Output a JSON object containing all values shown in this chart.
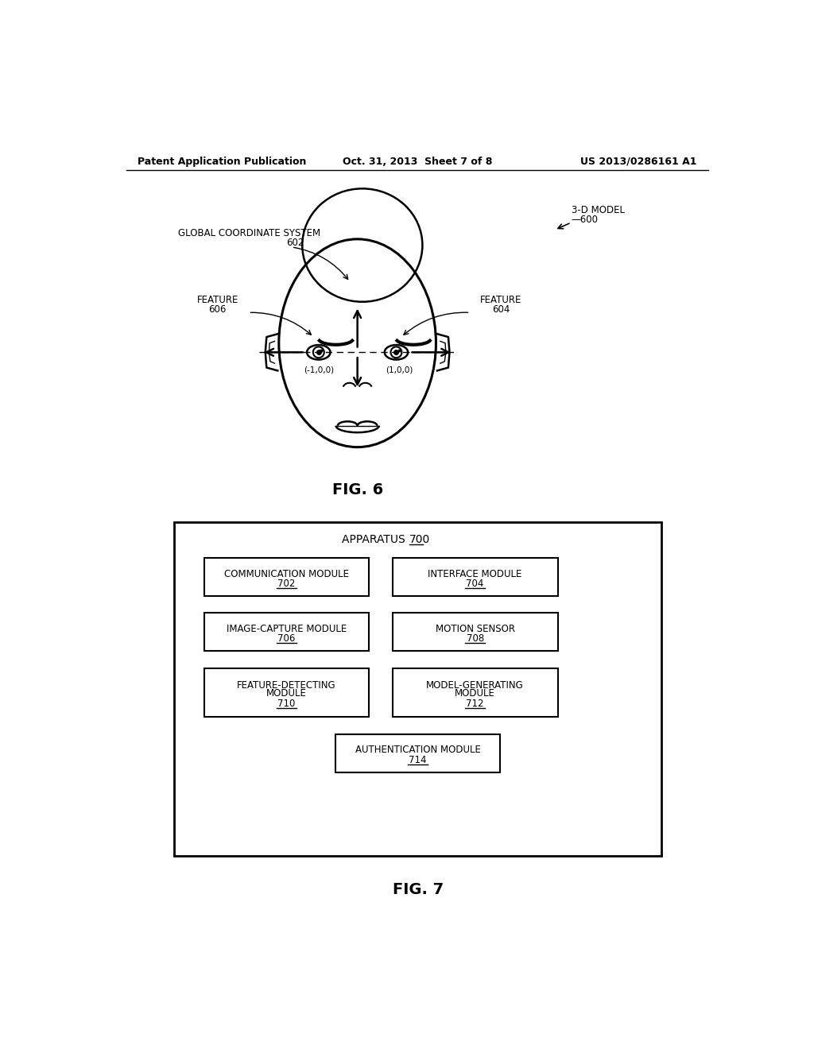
{
  "bg_color": "#ffffff",
  "header_left": "Patent Application Publication",
  "header_center": "Oct. 31, 2013  Sheet 7 of 8",
  "header_right": "US 2013/0286161 A1",
  "fig6_label": "FIG. 6",
  "fig7_label": "FIG. 7",
  "label_3d_model": "3-D MODEL",
  "label_600": "600",
  "label_global": "GLOBAL COORDINATE SYSTEM",
  "label_602": "602",
  "label_feature_left": "FEATURE",
  "label_606": "606",
  "label_feature_right": "FEATURE",
  "label_604": "604",
  "label_neg100": "(-1,0,0)",
  "label_pos100": "(1,0,0)",
  "apparatus_title": "APPARATUS",
  "apparatus_num": "700"
}
